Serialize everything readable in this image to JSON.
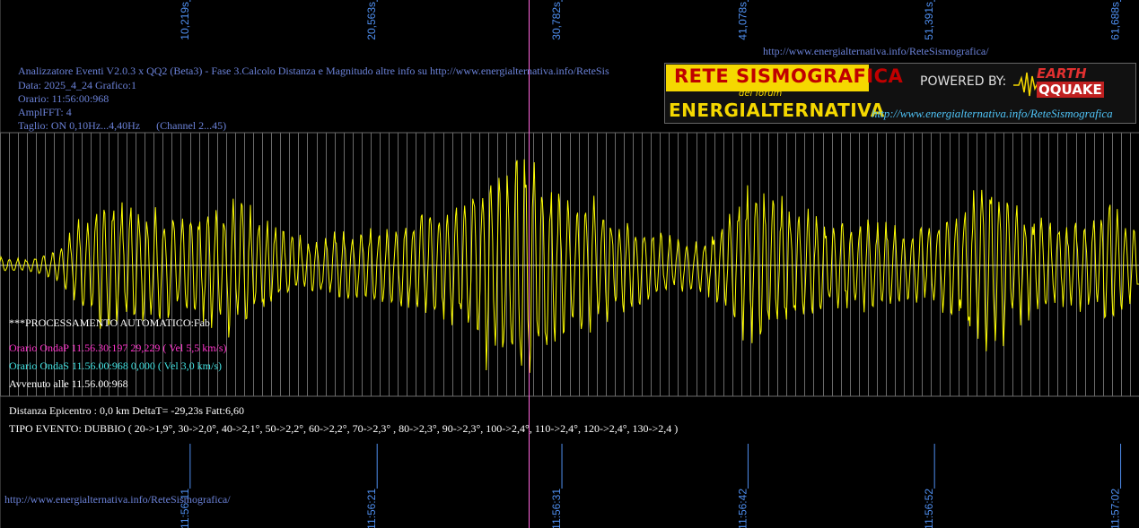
{
  "header": {
    "url_top": "http://www.energialternativa.info/ReteSismografica/",
    "line1": "Analizzatore Eventi V2.0.3 x QQ2 (Beta3) - Fase 3.Calcolo Distanza e Magnitudo altre info su http://www.energialternativa.info/ReteSis",
    "line2": "Data: 2025_4_24 Grafico:1",
    "line3": "Orario: 11:56:00:968",
    "line4": "AmplFFT: 4",
    "line5": "Taglio: ON 0,10Hz...4,40Hz      (Channel 2...45)"
  },
  "banner": {
    "rete": "RETE SISMOGRAFICA",
    "del_forum": "del forum",
    "energialternativa": "ENERGIALTERNATIVA",
    "powered_by": "POWERED BY:",
    "earth": "EARTH",
    "quake": "QQUAKE",
    "url": "http://www.energialternativa.info/ReteSismografica"
  },
  "info": {
    "processing": "***PROCESSAMENTO AUTOMATICO:Fab",
    "onda_p": "Orario OndaP 11.56.30:197  29,229 ( Vel 5,5 km/s)",
    "onda_s": "Orario OndaS 11.56.00:968  0,000 ( Vel 3,0 km/s)",
    "avvenuto": "Avvenuto alle 11.56.00:968",
    "distanza": "Distanza Epicentro : 0,0 km DeltaT= -29,23s  Fatt:6,60",
    "tipo_evento": "TIPO EVENTO: DUBBIO ( 20->1,9°, 30->2,0°, 40->2,1°, 50->2,2°, 60->2,2°, 70->2,3° , 80->2,3°, 90->2,3°, 100->2,4°, 110->2,4°, 120->2,4°, 130->2,4 )"
  },
  "footer": {
    "url": "http://www.energialternativa.info/ReteSismografica/"
  },
  "colors": {
    "background": "#000000",
    "trace": "#ffff00",
    "grid": "#6a6a6a",
    "tick_label": "#4f8ff0",
    "p_marker": "#ff66dd"
  },
  "chart_data": {
    "type": "line",
    "x_unit": "s",
    "top_tick_labels": [
      "10,219s",
      "20,563s",
      "30,782s",
      "41,078s",
      "51,391s",
      "61,688s"
    ],
    "top_tick_values": [
      10.219,
      20.563,
      30.782,
      41.078,
      51.391,
      61.688
    ],
    "bottom_tick_labels": [
      "11:56:11",
      "11:56:21",
      "11:56:31",
      "11:56:42",
      "11:56:52",
      "11:57:02"
    ],
    "xlim": [
      0,
      63.0
    ],
    "p_wave_marker_s": 29.229,
    "grid": true,
    "envelope": {
      "times_s": [
        0,
        1.5,
        3,
        4.5,
        5.5,
        6.5,
        8,
        10.5,
        12,
        13,
        15,
        17,
        18.5,
        20,
        21.5,
        23,
        24.5,
        26,
        27,
        28,
        28.8,
        29.5,
        30.2,
        31.5,
        33,
        35,
        37,
        38.5,
        40,
        41.5,
        42.5,
        44,
        46,
        48,
        50,
        51.5,
        53,
        54.5,
        55.5,
        57,
        59,
        60.5,
        61.5,
        63
      ],
      "amplitudes": [
        0.06,
        0.05,
        0.1,
        0.35,
        0.45,
        0.48,
        0.42,
        0.38,
        0.5,
        0.52,
        0.3,
        0.2,
        0.25,
        0.3,
        0.28,
        0.38,
        0.42,
        0.55,
        0.8,
        0.7,
        1.0,
        0.95,
        0.7,
        0.48,
        0.5,
        0.32,
        0.22,
        0.18,
        0.3,
        0.62,
        0.6,
        0.45,
        0.32,
        0.34,
        0.3,
        0.28,
        0.42,
        0.62,
        0.6,
        0.38,
        0.3,
        0.35,
        0.55,
        0.2
      ]
    },
    "carrier_hz": 2.1,
    "sample_rate_hz": 20
  }
}
